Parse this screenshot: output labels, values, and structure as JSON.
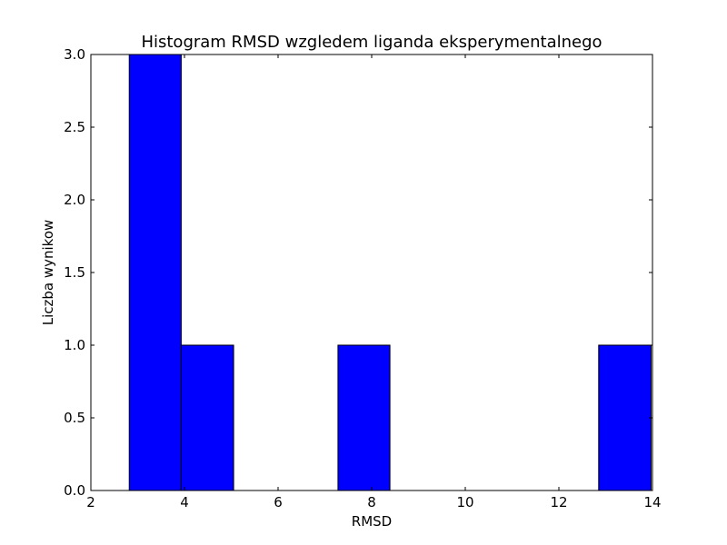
{
  "chart_data": {
    "type": "bar",
    "title": "Histogram RMSD wzgledem liganda eksperymentalnego",
    "xlabel": "RMSD",
    "ylabel": "Liczba wynikow",
    "xlim": [
      2,
      14
    ],
    "ylim": [
      0,
      3.0
    ],
    "xticks": [
      "2",
      "4",
      "6",
      "8",
      "10",
      "12",
      "14"
    ],
    "yticks": [
      "0.0",
      "0.5",
      "1.0",
      "1.5",
      "2.0",
      "2.5",
      "3.0"
    ],
    "bins": [
      {
        "x0": 2.82,
        "x1": 3.93,
        "count": 3
      },
      {
        "x0": 3.93,
        "x1": 5.05,
        "count": 1
      },
      {
        "x0": 5.05,
        "x1": 6.16,
        "count": 0
      },
      {
        "x0": 6.16,
        "x1": 7.28,
        "count": 0
      },
      {
        "x0": 7.28,
        "x1": 8.39,
        "count": 1
      },
      {
        "x0": 8.39,
        "x1": 9.51,
        "count": 0
      },
      {
        "x0": 9.51,
        "x1": 10.62,
        "count": 0
      },
      {
        "x0": 10.62,
        "x1": 11.74,
        "count": 0
      },
      {
        "x0": 11.74,
        "x1": 12.85,
        "count": 0
      },
      {
        "x0": 12.85,
        "x1": 13.97,
        "count": 1
      }
    ],
    "bar_color": "#0000ff",
    "edge_color": "#000000",
    "grid": false,
    "legend": "none"
  }
}
